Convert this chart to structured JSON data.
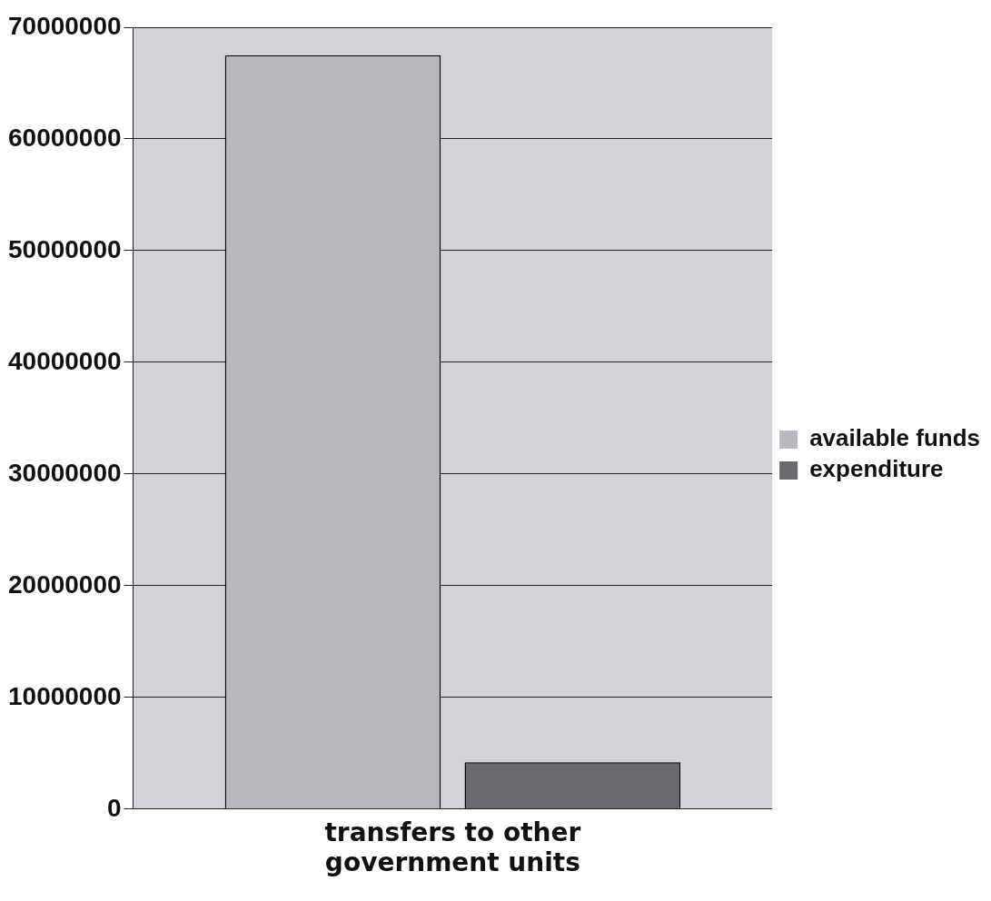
{
  "chart_data": {
    "type": "bar",
    "categories": [
      "transfers to other government units"
    ],
    "series": [
      {
        "name": "available funds",
        "color": "#b8b8be",
        "values": [
          67500000
        ]
      },
      {
        "name": "expenditure",
        "color": "#6a6a6e",
        "values": [
          4200000
        ]
      }
    ],
    "ylim": [
      0,
      70000000
    ],
    "yticks": [
      0,
      10000000,
      20000000,
      30000000,
      40000000,
      50000000,
      60000000,
      70000000
    ],
    "grid": "y",
    "legend": "right"
  }
}
